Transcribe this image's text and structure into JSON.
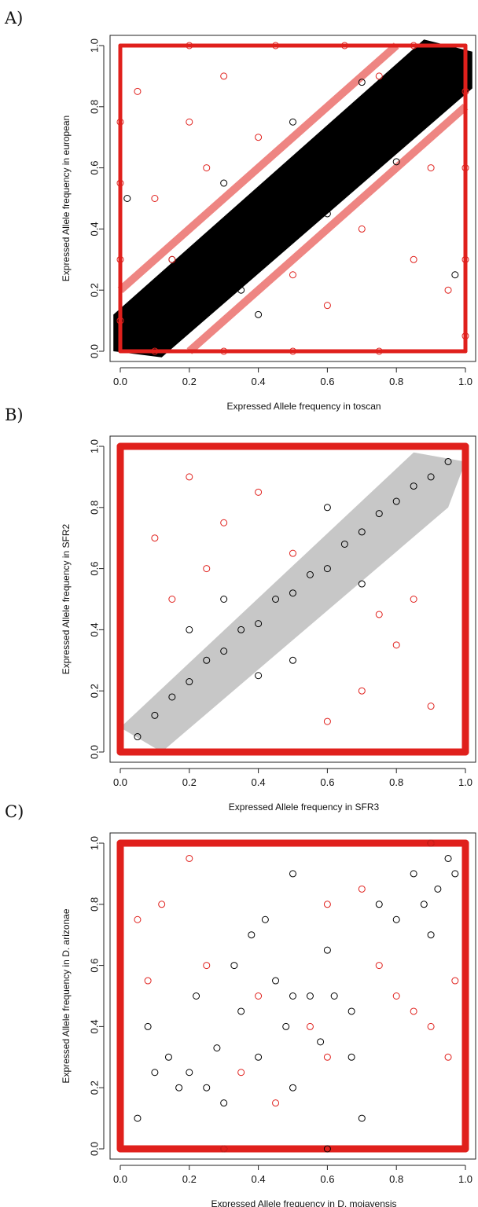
{
  "colors": {
    "series_black": "#000000",
    "series_red": "#e0201c",
    "axis": "#222222",
    "background": "#ffffff"
  },
  "chart_data": [
    {
      "type": "scatter",
      "panel_label": "A)",
      "xlabel": "Expressed Allele frequency in toscan",
      "ylabel": "Expressed Allele frequency in european",
      "xlim": [
        0,
        1
      ],
      "ylim": [
        0,
        1
      ],
      "xticks": [
        "0.0",
        "0.2",
        "0.4",
        "0.6",
        "0.8",
        "1.0"
      ],
      "yticks": [
        "0.0",
        "0.2",
        "0.4",
        "0.6",
        "0.8",
        "1.0"
      ],
      "grid": false,
      "series": [
        {
          "color": "#000000",
          "points": [
            [
              0.05,
              0.06
            ],
            [
              0.08,
              0.1
            ],
            [
              0.12,
              0.15
            ],
            [
              0.2,
              0.2
            ],
            [
              0.25,
              0.24
            ],
            [
              0.3,
              0.31
            ],
            [
              0.35,
              0.36
            ],
            [
              0.4,
              0.41
            ],
            [
              0.45,
              0.44
            ],
            [
              0.5,
              0.5
            ],
            [
              0.55,
              0.56
            ],
            [
              0.6,
              0.6
            ],
            [
              0.65,
              0.66
            ],
            [
              0.7,
              0.7
            ],
            [
              0.75,
              0.76
            ],
            [
              0.8,
              0.8
            ],
            [
              0.85,
              0.86
            ],
            [
              0.9,
              0.9
            ],
            [
              0.95,
              0.94
            ],
            [
              0.98,
              0.97
            ],
            [
              0.15,
              0.3
            ],
            [
              0.3,
              0.55
            ],
            [
              0.5,
              0.75
            ],
            [
              0.35,
              0.2
            ],
            [
              0.6,
              0.45
            ],
            [
              0.8,
              0.62
            ],
            [
              0.02,
              0.5
            ],
            [
              0.97,
              0.25
            ],
            [
              0.4,
              0.12
            ],
            [
              0.7,
              0.88
            ]
          ]
        },
        {
          "color": "#e0201c",
          "points": [
            [
              0.0,
              0.1
            ],
            [
              0.0,
              0.3
            ],
            [
              0.0,
              0.55
            ],
            [
              0.0,
              0.75
            ],
            [
              1.0,
              0.05
            ],
            [
              1.0,
              0.3
            ],
            [
              1.0,
              0.6
            ],
            [
              1.0,
              0.85
            ],
            [
              0.1,
              0.0
            ],
            [
              0.3,
              0.0
            ],
            [
              0.5,
              0.0
            ],
            [
              0.75,
              0.0
            ],
            [
              0.2,
              1.0
            ],
            [
              0.45,
              1.0
            ],
            [
              0.65,
              1.0
            ],
            [
              0.85,
              1.0
            ],
            [
              0.1,
              0.5
            ],
            [
              0.2,
              0.75
            ],
            [
              0.3,
              0.9
            ],
            [
              0.15,
              0.3
            ],
            [
              0.4,
              0.7
            ],
            [
              0.5,
              0.25
            ],
            [
              0.7,
              0.4
            ],
            [
              0.85,
              0.3
            ],
            [
              0.6,
              0.15
            ],
            [
              0.9,
              0.6
            ],
            [
              0.95,
              0.2
            ],
            [
              0.05,
              0.85
            ],
            [
              0.25,
              0.6
            ],
            [
              0.75,
              0.9
            ]
          ]
        }
      ]
    },
    {
      "type": "scatter",
      "panel_label": "B)",
      "xlabel": "Expressed Allele frequency in SFR3",
      "ylabel": "Expressed Allele frequency in SFR2",
      "xlim": [
        0,
        1
      ],
      "ylim": [
        0,
        1
      ],
      "xticks": [
        "0.0",
        "0.2",
        "0.4",
        "0.6",
        "0.8",
        "1.0"
      ],
      "yticks": [
        "0.0",
        "0.2",
        "0.4",
        "0.6",
        "0.8",
        "1.0"
      ],
      "grid": false,
      "series": [
        {
          "color": "#000000",
          "points": [
            [
              0.05,
              0.05
            ],
            [
              0.1,
              0.12
            ],
            [
              0.15,
              0.18
            ],
            [
              0.2,
              0.23
            ],
            [
              0.25,
              0.3
            ],
            [
              0.3,
              0.33
            ],
            [
              0.35,
              0.4
            ],
            [
              0.4,
              0.42
            ],
            [
              0.45,
              0.5
            ],
            [
              0.5,
              0.52
            ],
            [
              0.55,
              0.58
            ],
            [
              0.6,
              0.6
            ],
            [
              0.65,
              0.68
            ],
            [
              0.7,
              0.72
            ],
            [
              0.75,
              0.78
            ],
            [
              0.8,
              0.82
            ],
            [
              0.85,
              0.87
            ],
            [
              0.9,
              0.9
            ],
            [
              0.95,
              0.95
            ],
            [
              0.3,
              0.5
            ],
            [
              0.5,
              0.3
            ],
            [
              0.6,
              0.8
            ],
            [
              0.7,
              0.55
            ],
            [
              0.4,
              0.25
            ],
            [
              0.2,
              0.4
            ]
          ]
        },
        {
          "color": "#e0201c",
          "points": [
            [
              0.0,
              0.2
            ],
            [
              0.0,
              0.5
            ],
            [
              0.0,
              0.8
            ],
            [
              1.0,
              0.1
            ],
            [
              1.0,
              0.4
            ],
            [
              1.0,
              0.7
            ],
            [
              0.2,
              0.0
            ],
            [
              0.5,
              0.0
            ],
            [
              0.8,
              0.0
            ],
            [
              0.3,
              1.0
            ],
            [
              0.6,
              1.0
            ],
            [
              0.9,
              1.0
            ],
            [
              0.1,
              0.7
            ],
            [
              0.2,
              0.9
            ],
            [
              0.3,
              0.75
            ],
            [
              0.4,
              0.85
            ],
            [
              0.15,
              0.5
            ],
            [
              0.7,
              0.2
            ],
            [
              0.8,
              0.35
            ],
            [
              0.9,
              0.15
            ],
            [
              0.6,
              0.1
            ],
            [
              0.85,
              0.5
            ],
            [
              0.5,
              0.65
            ],
            [
              0.25,
              0.6
            ],
            [
              0.75,
              0.45
            ]
          ]
        }
      ]
    },
    {
      "type": "scatter",
      "panel_label": "C)",
      "xlabel": "Expressed Allele frequency in D. mojavensis",
      "ylabel": "Expressed Allele frequency in D. arizonae",
      "xlim": [
        0,
        1
      ],
      "ylim": [
        0,
        1
      ],
      "xticks": [
        "0.0",
        "0.2",
        "0.4",
        "0.6",
        "0.8",
        "1.0"
      ],
      "yticks": [
        "0.0",
        "0.2",
        "0.4",
        "0.6",
        "0.8",
        "1.0"
      ],
      "grid": false,
      "series": [
        {
          "color": "#000000",
          "points": [
            [
              0.05,
              0.1
            ],
            [
              0.08,
              0.4
            ],
            [
              0.1,
              0.25
            ],
            [
              0.14,
              0.3
            ],
            [
              0.17,
              0.2
            ],
            [
              0.2,
              0.25
            ],
            [
              0.22,
              0.5
            ],
            [
              0.25,
              0.2
            ],
            [
              0.28,
              0.33
            ],
            [
              0.3,
              0.15
            ],
            [
              0.33,
              0.6
            ],
            [
              0.35,
              0.45
            ],
            [
              0.38,
              0.7
            ],
            [
              0.4,
              0.3
            ],
            [
              0.42,
              0.75
            ],
            [
              0.45,
              0.55
            ],
            [
              0.48,
              0.4
            ],
            [
              0.5,
              0.9
            ],
            [
              0.5,
              0.5
            ],
            [
              0.5,
              0.2
            ],
            [
              0.55,
              0.5
            ],
            [
              0.58,
              0.35
            ],
            [
              0.6,
              0.65
            ],
            [
              0.62,
              0.5
            ],
            [
              0.67,
              0.45
            ],
            [
              0.67,
              0.3
            ],
            [
              0.7,
              0.1
            ],
            [
              0.75,
              0.8
            ],
            [
              0.8,
              0.75
            ],
            [
              0.85,
              0.9
            ],
            [
              0.88,
              0.8
            ],
            [
              0.9,
              0.7
            ],
            [
              0.92,
              0.85
            ],
            [
              0.95,
              0.95
            ],
            [
              0.97,
              0.9
            ],
            [
              0.3,
              0.0
            ],
            [
              0.6,
              0.0
            ],
            [
              0.9,
              1.0
            ]
          ]
        },
        {
          "color": "#e0201c",
          "points": [
            [
              0.0,
              0.1
            ],
            [
              0.0,
              0.3
            ],
            [
              0.0,
              0.5
            ],
            [
              0.0,
              0.7
            ],
            [
              0.0,
              0.9
            ],
            [
              1.0,
              0.05
            ],
            [
              1.0,
              0.25
            ],
            [
              1.0,
              0.45
            ],
            [
              1.0,
              0.65
            ],
            [
              1.0,
              0.85
            ],
            [
              0.1,
              0.0
            ],
            [
              0.3,
              0.0
            ],
            [
              0.5,
              0.0
            ],
            [
              0.7,
              0.0
            ],
            [
              0.9,
              0.0
            ],
            [
              0.1,
              1.0
            ],
            [
              0.3,
              1.0
            ],
            [
              0.5,
              1.0
            ],
            [
              0.7,
              1.0
            ],
            [
              0.9,
              1.0
            ],
            [
              0.05,
              0.75
            ],
            [
              0.08,
              0.55
            ],
            [
              0.12,
              0.8
            ],
            [
              0.2,
              0.95
            ],
            [
              0.25,
              0.6
            ],
            [
              0.4,
              0.5
            ],
            [
              0.45,
              0.15
            ],
            [
              0.55,
              0.4
            ],
            [
              0.6,
              0.8
            ],
            [
              0.7,
              0.85
            ],
            [
              0.75,
              0.6
            ],
            [
              0.8,
              0.5
            ],
            [
              0.85,
              0.45
            ],
            [
              0.9,
              0.4
            ],
            [
              0.95,
              0.3
            ],
            [
              0.97,
              0.55
            ],
            [
              0.6,
              0.3
            ],
            [
              0.35,
              0.25
            ]
          ]
        }
      ]
    }
  ]
}
